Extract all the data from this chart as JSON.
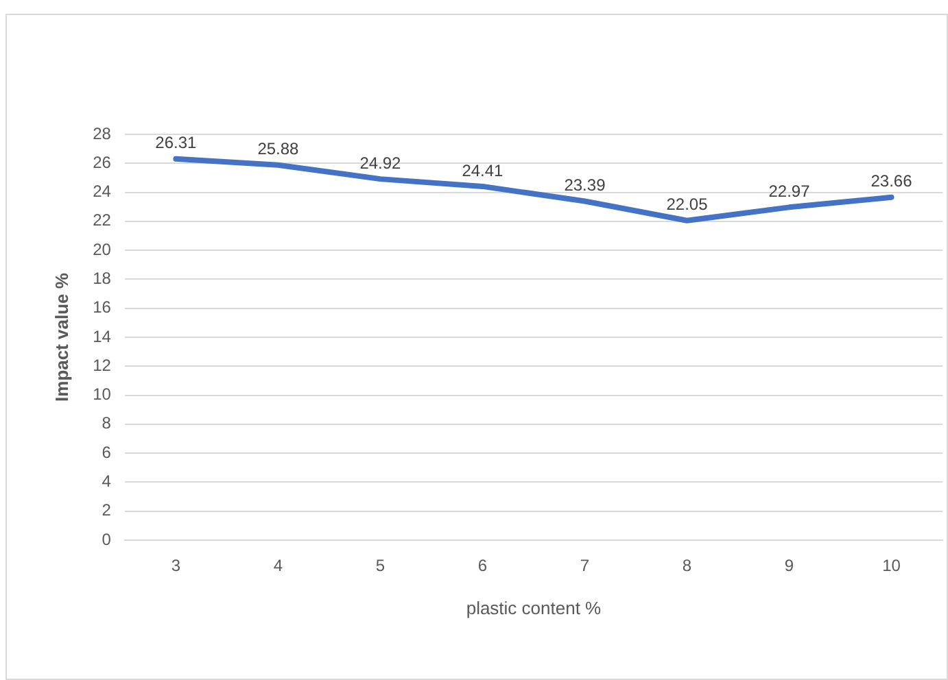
{
  "chart_data": {
    "type": "line",
    "xlabel": "plastic content %",
    "ylabel": "Impact value %",
    "categories": [
      "3",
      "4",
      "5",
      "6",
      "7",
      "8",
      "9",
      "10"
    ],
    "series": [
      {
        "color": "#4472c4",
        "values": [
          26.31,
          25.88,
          24.92,
          24.41,
          23.39,
          22.05,
          22.97,
          23.66
        ]
      }
    ],
    "ylim": [
      0,
      28
    ],
    "yticks": [
      0,
      2,
      4,
      6,
      8,
      10,
      12,
      14,
      16,
      18,
      20,
      22,
      24,
      26,
      28
    ],
    "grid": "y",
    "legend": false,
    "marker": "none",
    "line_style": "solid",
    "data_labels": true
  }
}
